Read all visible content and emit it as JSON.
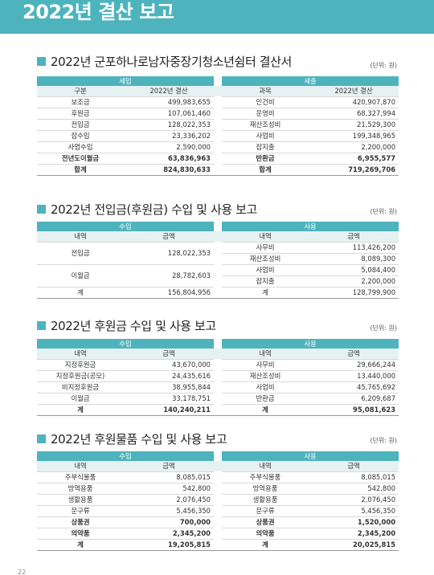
{
  "banner": {
    "title": "2022년 결산 보고"
  },
  "sections": [
    {
      "title": "2022년 군포하나로남자중장기청소년쉼터 결산서",
      "unit": "(단위: 원)",
      "left_group": "세입",
      "right_group": "세출",
      "left_headers": [
        "구분",
        "2022년 결산"
      ],
      "right_headers": [
        "과목",
        "2022년 결산"
      ],
      "rows": [
        [
          "보조금",
          "499,983,655",
          "인건비",
          "420,907,870"
        ],
        [
          "후원금",
          "107,061,460",
          "운영비",
          "68,327,994"
        ],
        [
          "전입금",
          "128,022,353",
          "재산조성비",
          "21,529,300"
        ],
        [
          "잡수입",
          "23,336,202",
          "사업비",
          "199,348,965"
        ],
        [
          "사업수입",
          "2,590,000",
          "잡지출",
          "2,200,000"
        ],
        [
          "전년도이월금",
          "63,836,963",
          "반환금",
          "6,955,577"
        ],
        [
          "합계",
          "824,830,633",
          "합계",
          "719,269,706"
        ]
      ]
    },
    {
      "title": "2022년 전입금(후원금) 수입 및 사용 보고",
      "unit": "(단위: 원)",
      "left_group": "수입",
      "right_group": "사용",
      "left_headers": [
        "내역",
        "금액"
      ],
      "right_headers": [
        "내역",
        "금액"
      ],
      "left_rows": [
        [
          "전입금",
          "128,022,353"
        ],
        [
          "이월금",
          "28,782,603"
        ],
        [
          "계",
          "156,804,956"
        ]
      ],
      "right_rows": [
        [
          "사무비",
          "113,426,200"
        ],
        [
          "재산조성비",
          "8,089,300"
        ],
        [
          "사업비",
          "5,084,400"
        ],
        [
          "잡지출",
          "2,200,000"
        ],
        [
          "계",
          "128,799,900"
        ]
      ]
    },
    {
      "title": "2022년 후원금 수입 및 사용 보고",
      "unit": "(단위: 원)",
      "left_group": "수입",
      "right_group": "사용",
      "left_headers": [
        "내역",
        "금액"
      ],
      "right_headers": [
        "내역",
        "금액"
      ],
      "rows": [
        [
          "지정후원금",
          "43,670,000",
          "사무비",
          "29,666,244"
        ],
        [
          "지정후원금(공모)",
          "24,435,616",
          "재산조성비",
          "13,440,000"
        ],
        [
          "비지정후원금",
          "38,955,844",
          "사업비",
          "45,765,692"
        ],
        [
          "이월금",
          "33,178,751",
          "반환금",
          "6,209,687"
        ],
        [
          "계",
          "140,240,211",
          "계",
          "95,081,623"
        ]
      ]
    },
    {
      "title": "2022년 후원물품 수입 및 사용 보고",
      "unit": "(단위: 원)",
      "left_group": "수입",
      "right_group": "사용",
      "left_headers": [
        "내역",
        "금액"
      ],
      "right_headers": [
        "내역",
        "금액"
      ],
      "rows": [
        [
          "주부식물품",
          "8,085,015",
          "주부식물품",
          "8,085,015"
        ],
        [
          "방역용품",
          "542,800",
          "방역용품",
          "542,800"
        ],
        [
          "생활용품",
          "2,076,450",
          "생활용품",
          "2,076,450"
        ],
        [
          "문구류",
          "5,456,350",
          "문구류",
          "5,456,350"
        ],
        [
          "상품권",
          "700,000",
          "상품권",
          "1,520,000"
        ],
        [
          "의약품",
          "2,345,200",
          "의약품",
          "2,345,200"
        ],
        [
          "계",
          "19,205,815",
          "계",
          "20,025,815"
        ]
      ]
    }
  ],
  "page_number": "22"
}
